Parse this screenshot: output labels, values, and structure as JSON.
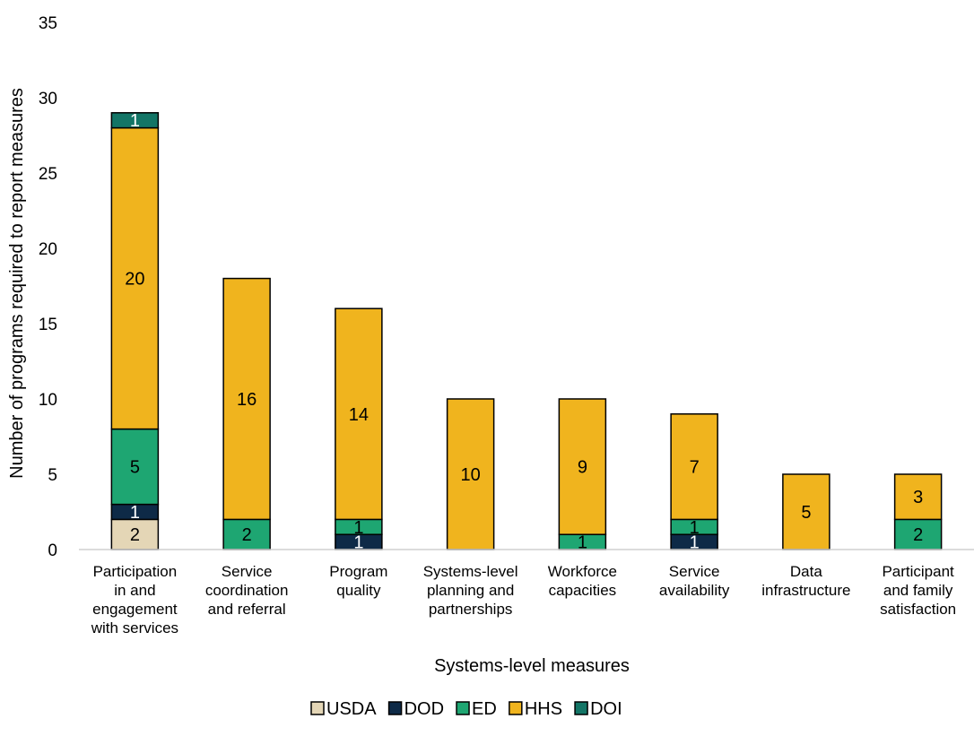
{
  "chart_data": {
    "type": "bar",
    "stacked": true,
    "title": "",
    "xlabel": "Systems-level measures",
    "ylabel": "Number of programs required to report measures",
    "ylim": [
      0,
      35
    ],
    "yticks": [
      0,
      5,
      10,
      15,
      20,
      25,
      30,
      35
    ],
    "grid": false,
    "legend_position": "bottom",
    "categories": [
      [
        "Participation",
        "in and",
        "engagement",
        "with services"
      ],
      [
        "Service",
        "coordination",
        "and referral"
      ],
      [
        "Program",
        "quality"
      ],
      [
        "Systems-level",
        "planning and",
        "partnerships"
      ],
      [
        "Workforce",
        "capacities"
      ],
      [
        "Service",
        "availability"
      ],
      [
        "Data",
        "infrastructure"
      ],
      [
        "Participant",
        "and family",
        "satisfaction"
      ]
    ],
    "series": [
      {
        "name": "USDA",
        "color": "#E4D6B6",
        "label_color": "#000000",
        "values": [
          2,
          0,
          0,
          0,
          0,
          0,
          0,
          0
        ]
      },
      {
        "name": "DOD",
        "color": "#0E2A47",
        "label_color": "#FFFFFF",
        "values": [
          1,
          0,
          1,
          0,
          0,
          1,
          0,
          0
        ]
      },
      {
        "name": "ED",
        "color": "#1EA672",
        "label_color": "#000000",
        "values": [
          5,
          2,
          1,
          0,
          1,
          1,
          0,
          2
        ]
      },
      {
        "name": "HHS",
        "color": "#F0B41E",
        "label_color": "#000000",
        "values": [
          20,
          16,
          14,
          10,
          9,
          7,
          5,
          3
        ]
      },
      {
        "name": "DOI",
        "color": "#137566",
        "label_color": "#FFFFFF",
        "values": [
          1,
          0,
          0,
          0,
          0,
          0,
          0,
          0
        ]
      }
    ]
  }
}
